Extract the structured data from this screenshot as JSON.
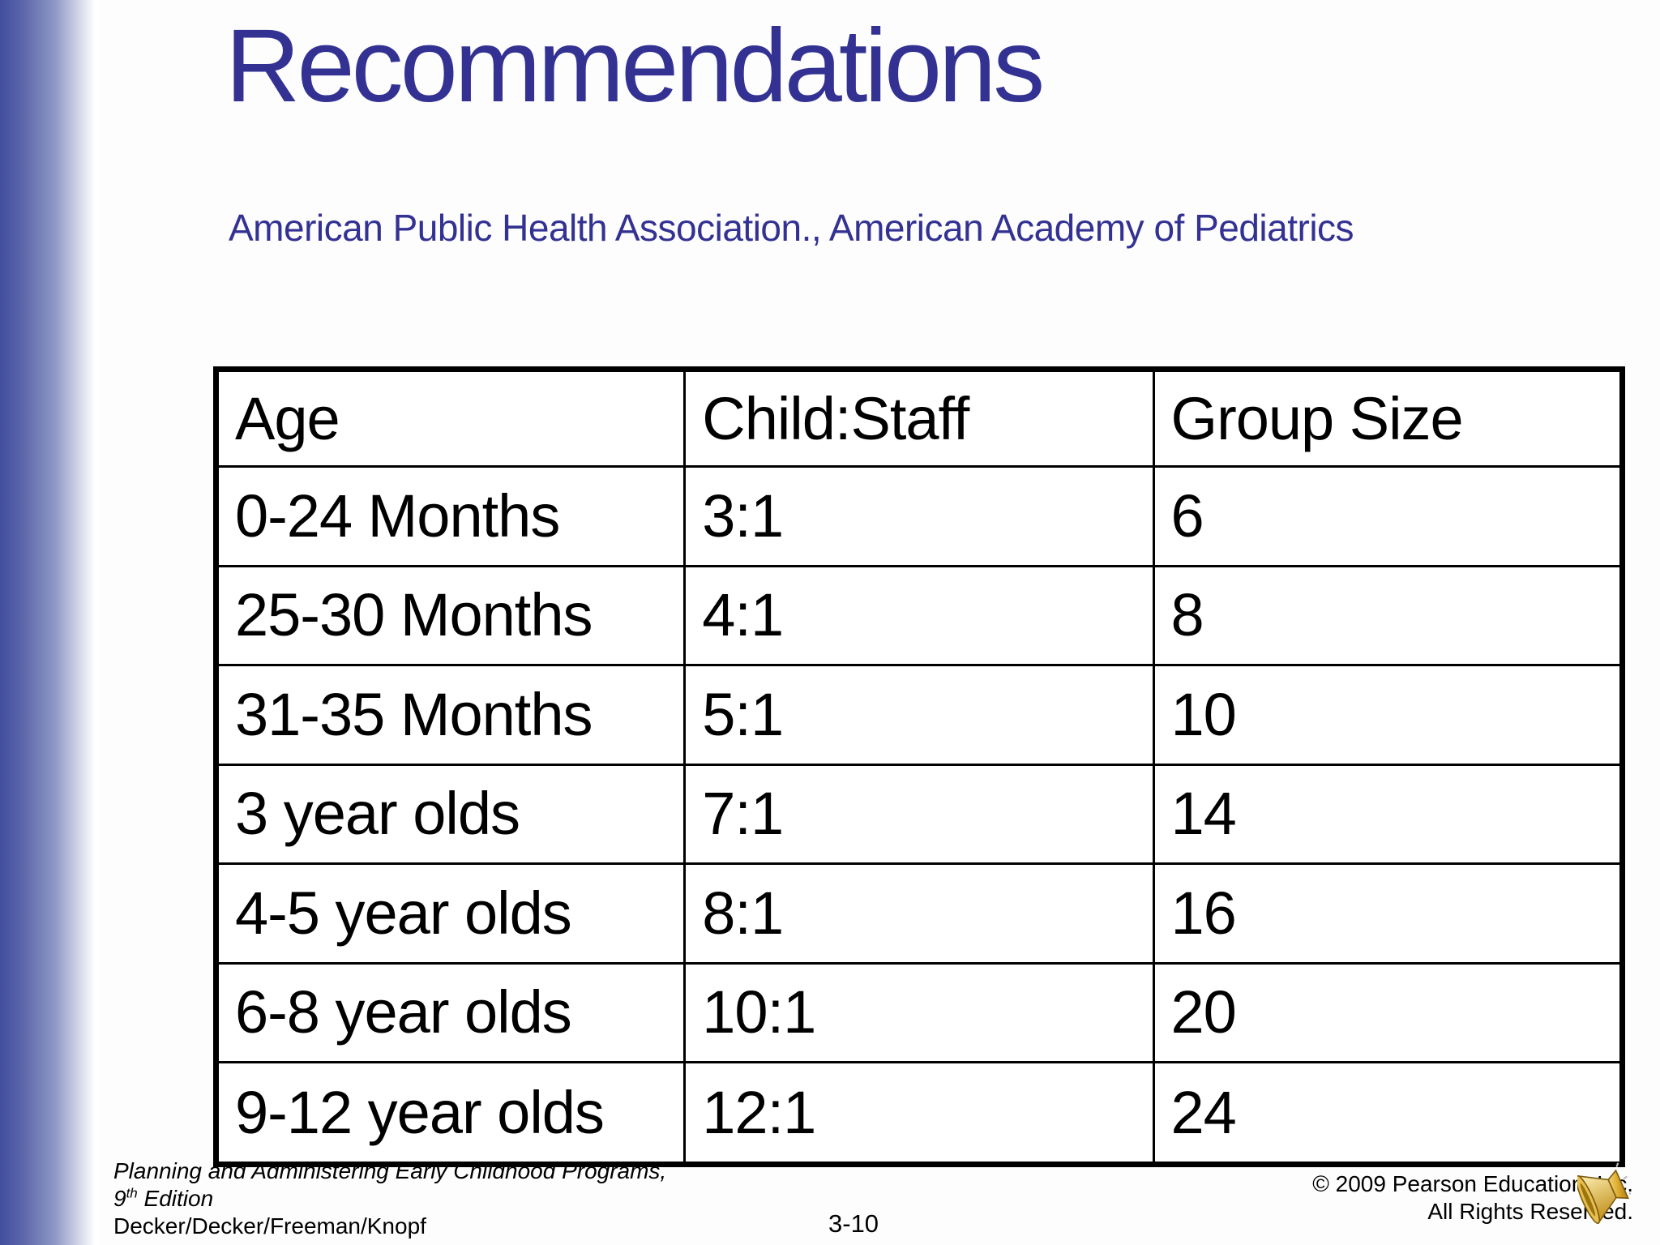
{
  "slide": {
    "title": "Recommendations",
    "subtitle": "American Public Health Association.,  American Academy of Pediatrics",
    "accent_color": "#333293",
    "sidebar_color": "#414e9e"
  },
  "table": {
    "headers": [
      "Age",
      "Child:Staff",
      "Group Size"
    ],
    "rows": [
      [
        "0-24 Months",
        "3:1",
        "6"
      ],
      [
        "25-30 Months",
        "4:1",
        "8"
      ],
      [
        "31-35 Months",
        "5:1",
        "10"
      ],
      [
        "3 year olds",
        "7:1",
        "14"
      ],
      [
        "4-5 year olds",
        "8:1",
        "16"
      ],
      [
        "6-8 year olds",
        "10:1",
        "20"
      ],
      [
        "9-12 year olds",
        "12:1",
        "24"
      ]
    ]
  },
  "footer": {
    "book_title": "Planning and Administering Early Childhood Programs,",
    "edition_num": "9",
    "edition_sup": "th",
    "edition_rest": " Edition",
    "authors": "Decker/Decker/Freeman/Knopf",
    "page_number": "3-10",
    "copyright_line1": "© 2009 Pearson Education, Inc.",
    "copyright_line2": "All Rights Reserved.",
    "audio_icon": "speaker-icon",
    "audio_icon_color": "#d6a227"
  }
}
